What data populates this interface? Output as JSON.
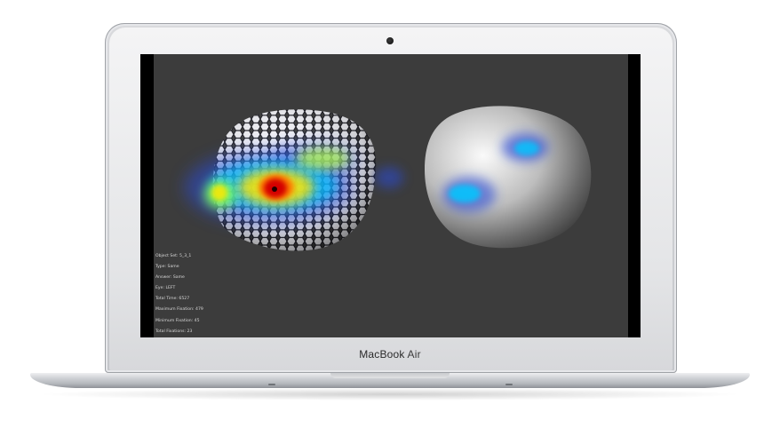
{
  "device": {
    "brand": "MacBook",
    "model": "Air"
  },
  "overlay": {
    "lines": [
      "Object Set: 5_3_1",
      "Type: Same",
      "Answer: Same",
      "Eye: LEFT",
      "Total Time: 6527",
      "Maximum Fixation: 479",
      "Minimum Fixation: 45",
      "Total Fixations: 23"
    ]
  },
  "colors": {
    "screen_background": "#3c3c3c",
    "heatmap_hot": "#d40000",
    "heatmap_warm": "#ffe600",
    "heatmap_cool": "#00c8ff",
    "heatmap_cold": "#2a4bd7"
  },
  "icons": [
    "camera-icon"
  ]
}
